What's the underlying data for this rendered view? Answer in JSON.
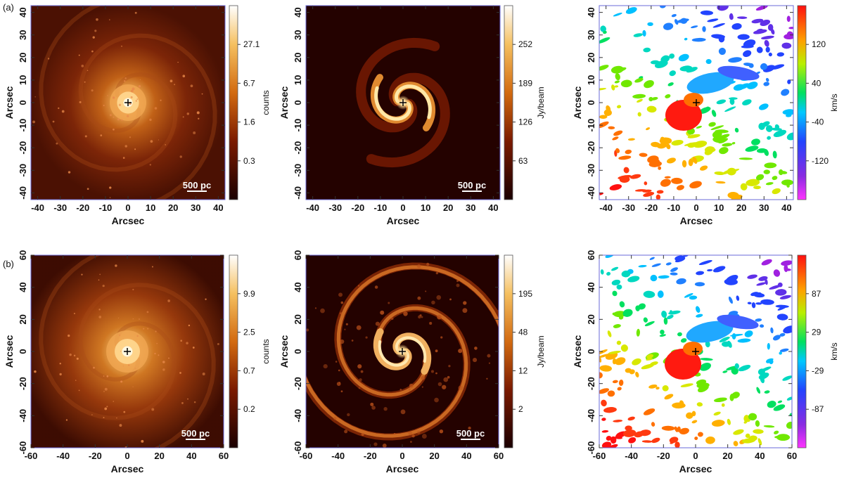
{
  "figure": {
    "rows": [
      {
        "tag": "(a)",
        "panels": [
          {
            "kind": "image",
            "xlabel": "Arcsec",
            "ylabel": "Arcsec",
            "ticks": [
              -40,
              -30,
              -20,
              -10,
              0,
              10,
              20,
              30,
              40
            ],
            "range": [
              -43,
              43
            ],
            "scale_bar": "500 pc",
            "colorbar": {
              "title": "counts",
              "ticks": [
                "27.1",
                "6.7",
                "1.6",
                "0.3"
              ],
              "palette": "hot"
            },
            "texture": "optical",
            "seed": 11
          },
          {
            "kind": "image",
            "xlabel": "Arcsec",
            "ylabel": "Arcsec",
            "ticks": [
              -40,
              -30,
              -20,
              -10,
              0,
              10,
              20,
              30,
              40
            ],
            "range": [
              -43,
              43
            ],
            "scale_bar": "500 pc",
            "colorbar": {
              "title": "Jy/beam",
              "ticks": [
                "252",
                "189",
                "126",
                "63"
              ],
              "palette": "hot"
            },
            "texture": "gas-core",
            "seed": 23
          },
          {
            "kind": "velocity",
            "xlabel": "Arcsec",
            "ylabel": "Arcsec",
            "ticks": [
              -40,
              -30,
              -20,
              -10,
              0,
              10,
              20,
              30,
              40
            ],
            "range": [
              -43,
              43
            ],
            "colorbar": {
              "title": "km/s",
              "ticks": [
                "120",
                "40",
                "-40",
                "-120"
              ],
              "palette": "rainbow"
            },
            "seed": 37
          }
        ]
      },
      {
        "tag": "(b)",
        "panels": [
          {
            "kind": "image",
            "xlabel": "Arcsec",
            "ylabel": "Arcsec",
            "ticks": [
              -60,
              -40,
              -20,
              0,
              20,
              40,
              60
            ],
            "range": [
              -60,
              60
            ],
            "scale_bar": "500 pc",
            "colorbar": {
              "title": "counts",
              "ticks": [
                "9.9",
                "2.5",
                "0.7",
                "0.2"
              ],
              "palette": "hot"
            },
            "texture": "optical-wide",
            "seed": 41
          },
          {
            "kind": "image",
            "xlabel": "Arcsec",
            "ylabel": "Arcsec",
            "ticks": [
              -60,
              -40,
              -20,
              0,
              20,
              40,
              60
            ],
            "range": [
              -60,
              60
            ],
            "scale_bar": "500 pc",
            "colorbar": {
              "title": "Jy/beam",
              "ticks": [
                "195",
                "48",
                "12",
                "2"
              ],
              "palette": "hot"
            },
            "texture": "gas-wide",
            "seed": 53
          },
          {
            "kind": "velocity",
            "xlabel": "Arcsec",
            "ylabel": "Arcsec",
            "ticks": [
              -60,
              -40,
              -20,
              0,
              20,
              40,
              60
            ],
            "range": [
              -60,
              60
            ],
            "colorbar": {
              "title": "km/s",
              "ticks": [
                "87",
                "29",
                "-29",
                "-87"
              ],
              "palette": "rainbow"
            },
            "seed": 67
          }
        ]
      }
    ]
  }
}
